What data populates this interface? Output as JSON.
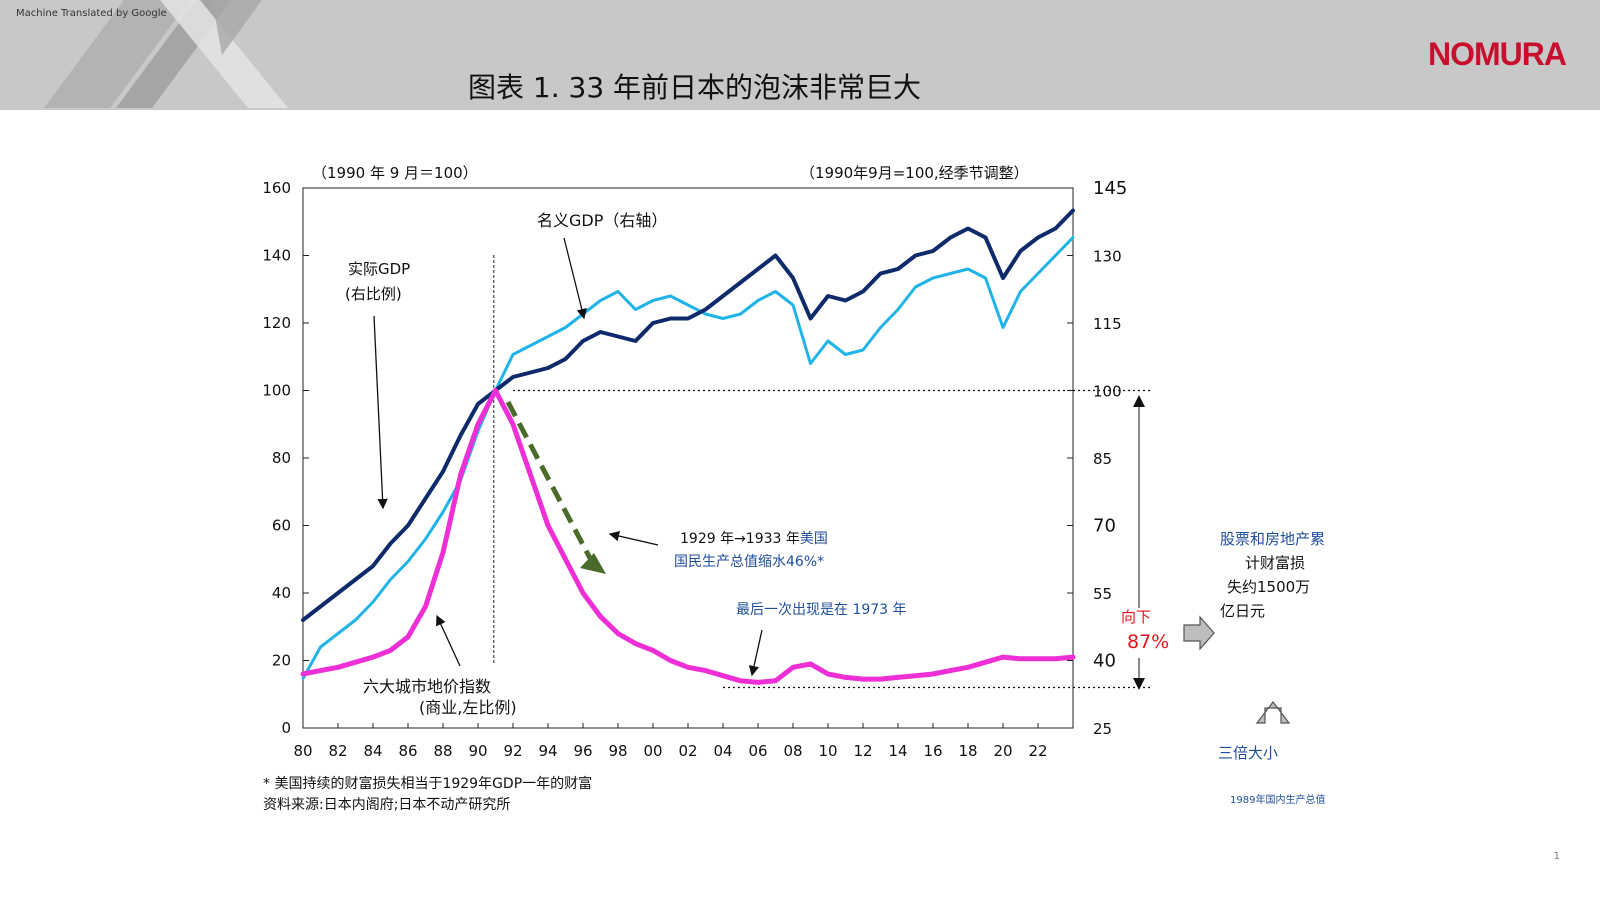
{
  "header": {
    "machine_translated_note": "Machine Translated by Google",
    "logo": "NOMURA",
    "title": "图表 1. 33 年前日本的泡沫非常巨大"
  },
  "chart_data": {
    "type": "line",
    "left_axis_note": "（1990 年 9 月＝100）",
    "right_axis_note": "（1990年9月=100,经季节调整）",
    "y_left": {
      "ticks": [
        "160",
        "140",
        "120",
        "100",
        "80",
        "60",
        "40",
        "20",
        "0"
      ],
      "ylim": [
        0,
        160
      ]
    },
    "y_right": {
      "ticks": [
        "145",
        "130",
        "115",
        "100",
        "85",
        "70",
        "55",
        "40",
        "25"
      ],
      "ylim": [
        25,
        145
      ]
    },
    "x_tick_labels": [
      "80",
      "82",
      "84",
      "86",
      "88",
      "90",
      "92",
      "94",
      "96",
      "98",
      "00",
      "02",
      "04",
      "06",
      "08",
      "10",
      "12",
      "14",
      "16",
      "18",
      "20",
      "22"
    ],
    "xlim": [
      1980,
      2024
    ],
    "grid": false,
    "series": [
      {
        "name": "名义GDP（右轴）",
        "axis": "right",
        "color": "#1fb3e8",
        "points": [
          [
            1980,
            36
          ],
          [
            1981,
            43
          ],
          [
            1982,
            46
          ],
          [
            1983,
            49
          ],
          [
            1984,
            53
          ],
          [
            1985,
            58
          ],
          [
            1986,
            62
          ],
          [
            1987,
            67
          ],
          [
            1988,
            73
          ],
          [
            1989,
            80
          ],
          [
            1990,
            91
          ],
          [
            1991,
            100
          ],
          [
            1992,
            108
          ],
          [
            1993,
            110
          ],
          [
            1994,
            112
          ],
          [
            1995,
            114
          ],
          [
            1996,
            117
          ],
          [
            1997,
            120
          ],
          [
            1998,
            122
          ],
          [
            1999,
            118
          ],
          [
            2000,
            120
          ],
          [
            2001,
            121
          ],
          [
            2002,
            119
          ],
          [
            2003,
            117
          ],
          [
            2004,
            116
          ],
          [
            2005,
            117
          ],
          [
            2006,
            120
          ],
          [
            2007,
            122
          ],
          [
            2008,
            119
          ],
          [
            2009,
            106
          ],
          [
            2010,
            111
          ],
          [
            2011,
            108
          ],
          [
            2012,
            109
          ],
          [
            2013,
            114
          ],
          [
            2014,
            118
          ],
          [
            2015,
            123
          ],
          [
            2016,
            125
          ],
          [
            2017,
            126
          ],
          [
            2018,
            127
          ],
          [
            2019,
            125
          ],
          [
            2020,
            114
          ],
          [
            2021,
            122
          ],
          [
            2022,
            126
          ],
          [
            2023,
            130
          ],
          [
            2024,
            134
          ]
        ]
      },
      {
        "name": "实际GDP（右比例）",
        "axis": "right",
        "color": "#0e2a6b",
        "points": [
          [
            1980,
            49
          ],
          [
            1981,
            52
          ],
          [
            1982,
            55
          ],
          [
            1983,
            58
          ],
          [
            1984,
            61
          ],
          [
            1985,
            66
          ],
          [
            1986,
            70
          ],
          [
            1987,
            76
          ],
          [
            1988,
            82
          ],
          [
            1989,
            90
          ],
          [
            1990,
            97
          ],
          [
            1991,
            100
          ],
          [
            1992,
            103
          ],
          [
            1993,
            104
          ],
          [
            1994,
            105
          ],
          [
            1995,
            107
          ],
          [
            1996,
            111
          ],
          [
            1997,
            113
          ],
          [
            1998,
            112
          ],
          [
            1999,
            111
          ],
          [
            2000,
            115
          ],
          [
            2001,
            116
          ],
          [
            2002,
            116
          ],
          [
            2003,
            118
          ],
          [
            2004,
            121
          ],
          [
            2005,
            124
          ],
          [
            2006,
            127
          ],
          [
            2007,
            130
          ],
          [
            2008,
            125
          ],
          [
            2009,
            116
          ],
          [
            2010,
            121
          ],
          [
            2011,
            120
          ],
          [
            2012,
            122
          ],
          [
            2013,
            126
          ],
          [
            2014,
            127
          ],
          [
            2015,
            130
          ],
          [
            2016,
            131
          ],
          [
            2017,
            134
          ],
          [
            2018,
            136
          ],
          [
            2019,
            134
          ],
          [
            2020,
            125
          ],
          [
            2021,
            131
          ],
          [
            2022,
            134
          ],
          [
            2023,
            136
          ],
          [
            2024,
            140
          ]
        ]
      },
      {
        "name": "六大城市地价指数（商业,左比例）",
        "axis": "left",
        "color": "#ee2fd6",
        "points": [
          [
            1980,
            16
          ],
          [
            1981,
            17
          ],
          [
            1982,
            18
          ],
          [
            1983,
            19.5
          ],
          [
            1984,
            21
          ],
          [
            1985,
            23
          ],
          [
            1986,
            27
          ],
          [
            1987,
            36
          ],
          [
            1988,
            52
          ],
          [
            1989,
            75
          ],
          [
            1990,
            90
          ],
          [
            1991,
            100
          ],
          [
            1992,
            90
          ],
          [
            1993,
            75
          ],
          [
            1994,
            60
          ],
          [
            1995,
            50
          ],
          [
            1996,
            40
          ],
          [
            1997,
            33
          ],
          [
            1998,
            28
          ],
          [
            1999,
            25
          ],
          [
            2000,
            23
          ],
          [
            2001,
            20
          ],
          [
            2002,
            18
          ],
          [
            2003,
            17
          ],
          [
            2004,
            15.5
          ],
          [
            2005,
            14
          ],
          [
            2006,
            13.5
          ],
          [
            2007,
            14
          ],
          [
            2008,
            18
          ],
          [
            2009,
            19
          ],
          [
            2010,
            16
          ],
          [
            2011,
            15
          ],
          [
            2012,
            14.5
          ],
          [
            2013,
            14.5
          ],
          [
            2014,
            15
          ],
          [
            2015,
            15.5
          ],
          [
            2016,
            16
          ],
          [
            2017,
            17
          ],
          [
            2018,
            18
          ],
          [
            2019,
            19.5
          ],
          [
            2020,
            21
          ],
          [
            2021,
            20.5
          ],
          [
            2022,
            20.5
          ],
          [
            2023,
            20.5
          ],
          [
            2024,
            21
          ]
        ]
      }
    ],
    "reference_lines": [
      {
        "label": "100",
        "axis": "left",
        "value": 100,
        "style": "dotted",
        "x_from": 1992,
        "extends_past_axis": true
      },
      {
        "label": "",
        "axis": "left",
        "value": 12,
        "style": "dotted",
        "x_from": 2004,
        "extends_past_axis": true
      }
    ],
    "vertical_marker": {
      "x": 1990.9,
      "style": "dashed"
    },
    "annotations": {
      "nominal_gdp_label": "名义GDP（右轴）",
      "real_gdp_label_line1": "实际GDP",
      "real_gdp_label_line2": "(右比例)",
      "land_label_line1": "六大城市地价指数",
      "land_label_line2": "(商业,左比例)",
      "us_line1_prefix": "1929 年→1933 年",
      "us_line1_highlight": "美国",
      "us_line2": "国民生产总值缩水46%*",
      "last_seen": "最后一次出现是在 1973 年",
      "down_label": "向下",
      "down_pct": "87%"
    },
    "colors": {
      "nominal_gdp": "#1fb3e8",
      "real_gdp": "#0e2a6b",
      "land_index": "#ee2fd6",
      "us_arrow": "#4a6b2a",
      "note_blue": "#1f4e9c",
      "down_red": "#e8141c"
    }
  },
  "side": {
    "loss_line1": "股票和房地产累",
    "loss_line2": "计财富损",
    "loss_line3": "失约1500万",
    "loss_line4": "亿日元",
    "triple_size": "三倍大小",
    "gdp_1989": "1989年国内生产总值"
  },
  "footnotes": {
    "note": "* 美国持续的财富损失相当于1929年GDP一年的财富",
    "source": "资料来源:日本内阁府;日本不动产研究所"
  },
  "page_number": "1"
}
